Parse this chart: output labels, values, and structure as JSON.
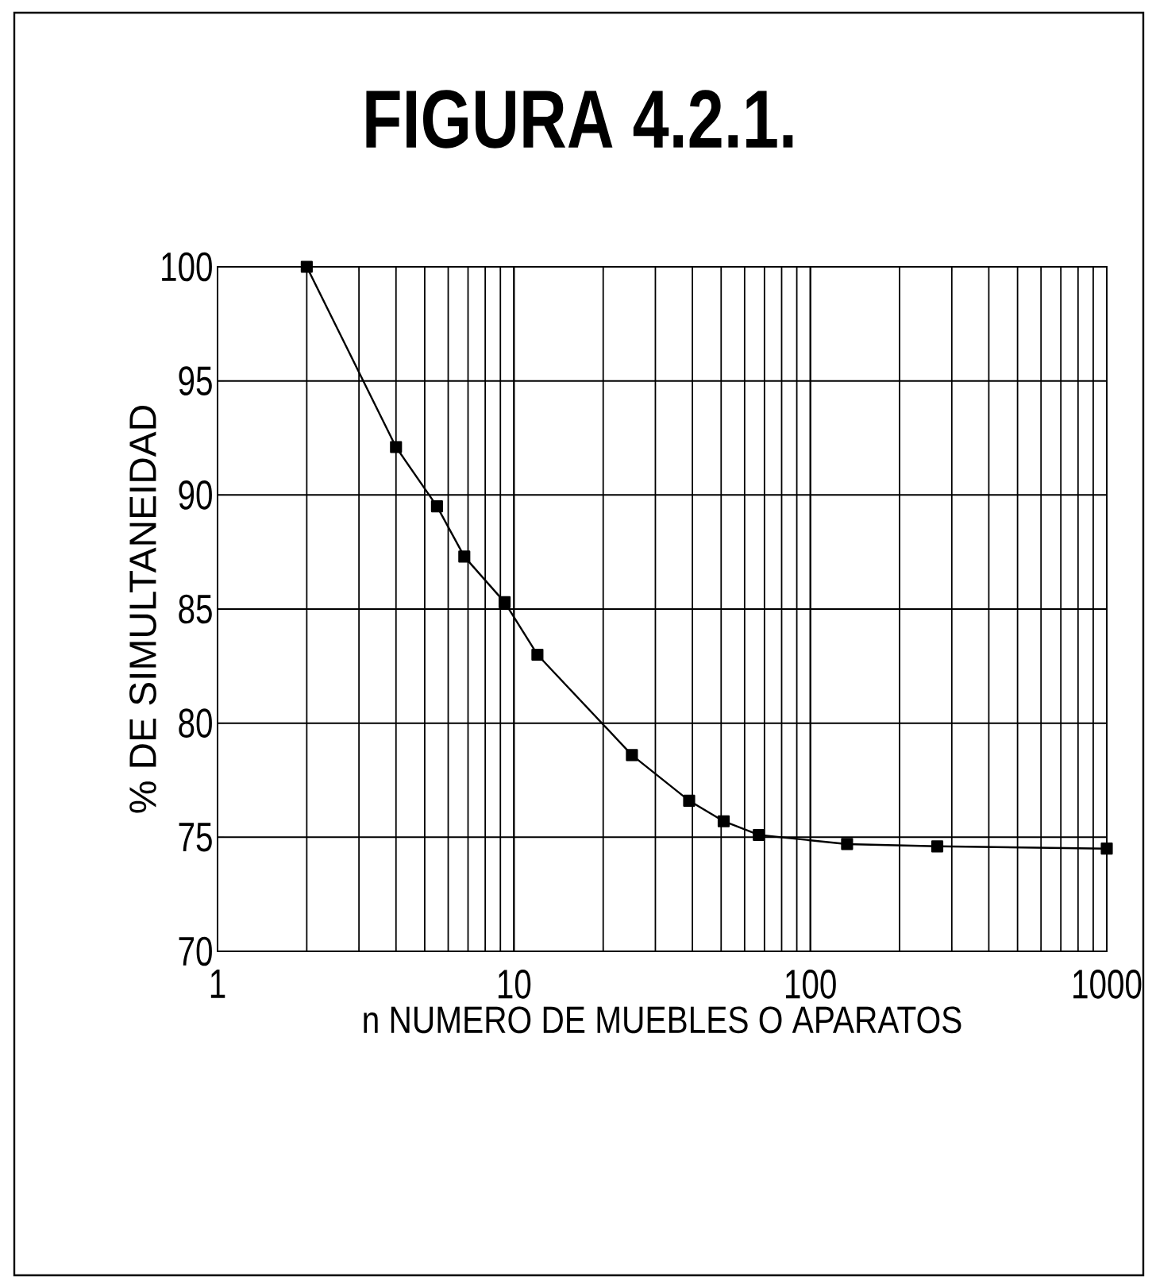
{
  "chart_data": {
    "type": "line",
    "title": "FIGURA 4.2.1.",
    "xlabel": "n NUMERO DE MUEBLES O APARATOS",
    "ylabel": "% DE SIMULTANEIDAD",
    "x": [
      2,
      4,
      5.5,
      6.8,
      9.3,
      12,
      25,
      39,
      51,
      67,
      133,
      268,
      1000
    ],
    "series": [
      {
        "color": "#000000",
        "values": [
          100,
          92.1,
          89.5,
          87.3,
          85.3,
          83.0,
          78.6,
          76.6,
          75.7,
          75.1,
          74.7,
          74.6,
          74.5
        ]
      }
    ],
    "log": "x",
    "xlim": [
      1,
      1000
    ],
    "xticks": [
      1,
      10,
      100,
      1000
    ],
    "ylim": [
      70,
      100
    ],
    "yticks": [
      70,
      75,
      80,
      85,
      90,
      95,
      100
    ],
    "grid": true,
    "marker": "square",
    "line_style": "solid"
  }
}
